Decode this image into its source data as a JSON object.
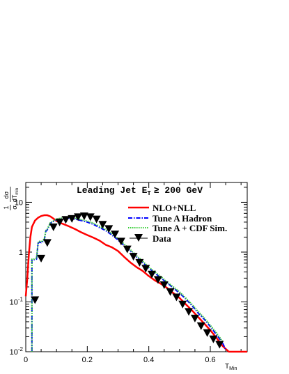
{
  "chart_data": {
    "type": "line",
    "title_main": "Leading Jet E",
    "title_sub": "T",
    "title_rest": "≥ 200 GeV",
    "ylabel": {
      "num": "1",
      "den": "σ",
      "dnum": "dσ",
      "dden": "dT",
      "dden_sub": "min"
    },
    "xlabel": {
      "main": "T",
      "sub": "Min"
    },
    "xlim": [
      0,
      0.72
    ],
    "ylim": [
      0.01,
      25
    ],
    "yscale": "log",
    "x_ticks": [
      {
        "value": 0,
        "label": "0"
      },
      {
        "value": 0.2,
        "label": "0.2"
      },
      {
        "value": 0.4,
        "label": "0.4"
      },
      {
        "value": 0.6,
        "label": "0.6"
      }
    ],
    "y_ticks": [
      {
        "value": 0.01,
        "base": "10",
        "exp": "-2"
      },
      {
        "value": 0.1,
        "base": "10",
        "exp": "-1"
      },
      {
        "value": 1,
        "base": "1",
        "exp": ""
      },
      {
        "value": 10,
        "base": "10",
        "exp": ""
      }
    ],
    "series": [
      {
        "name": "NLO+NLL",
        "color": "#ff0000",
        "style": "solid",
        "x": [
          0.0,
          0.005,
          0.01,
          0.015,
          0.02,
          0.03,
          0.04,
          0.05,
          0.06,
          0.07,
          0.08,
          0.09,
          0.1,
          0.12,
          0.14,
          0.16,
          0.18,
          0.2,
          0.22,
          0.24,
          0.26,
          0.28,
          0.3,
          0.32,
          0.34,
          0.36,
          0.38,
          0.4,
          0.42,
          0.44,
          0.46,
          0.48,
          0.5,
          0.52,
          0.54,
          0.56,
          0.58,
          0.6,
          0.62,
          0.64,
          0.66,
          0.68,
          0.7,
          0.72
        ],
        "y": [
          0.13,
          0.3,
          0.9,
          2.0,
          3.2,
          4.3,
          4.9,
          5.3,
          5.5,
          5.5,
          5.2,
          4.7,
          4.2,
          3.7,
          3.3,
          2.9,
          2.5,
          2.2,
          1.95,
          1.7,
          1.4,
          1.25,
          1.05,
          0.8,
          0.62,
          0.5,
          0.42,
          0.33,
          0.27,
          0.23,
          0.19,
          0.15,
          0.12,
          0.09,
          0.068,
          0.05,
          0.037,
          0.027,
          0.019,
          0.013,
          0.01,
          0.01,
          0.01,
          0.01
        ]
      },
      {
        "name": "Tune A Hadron",
        "color": "#0000ff",
        "style": "dashdot",
        "x": [
          0.02,
          0.02,
          0.025,
          0.035,
          0.04,
          0.045,
          0.05,
          0.06,
          0.065,
          0.07,
          0.08,
          0.1,
          0.12,
          0.14,
          0.16,
          0.18,
          0.2,
          0.22,
          0.24,
          0.26,
          0.28,
          0.3,
          0.32,
          0.34,
          0.36,
          0.38,
          0.4,
          0.42,
          0.44,
          0.46,
          0.48,
          0.5,
          0.52,
          0.54,
          0.56,
          0.58,
          0.6,
          0.62,
          0.64,
          0.65
        ],
        "y": [
          0.01,
          0.7,
          0.7,
          0.72,
          1.5,
          1.6,
          1.55,
          1.7,
          2.6,
          2.8,
          3.8,
          4.5,
          4.7,
          4.8,
          4.6,
          4.3,
          4.0,
          3.6,
          3.1,
          2.7,
          2.2,
          1.75,
          1.35,
          1.05,
          0.8,
          0.62,
          0.48,
          0.38,
          0.3,
          0.24,
          0.19,
          0.15,
          0.115,
          0.085,
          0.06,
          0.045,
          0.032,
          0.022,
          0.015,
          0.011
        ]
      },
      {
        "name": "Tune A + CDF Sim.",
        "color": "#33cc33",
        "style": "dotted",
        "x": [
          0.02,
          0.02,
          0.025,
          0.035,
          0.04,
          0.045,
          0.05,
          0.06,
          0.065,
          0.07,
          0.08,
          0.1,
          0.12,
          0.14,
          0.16,
          0.18,
          0.2,
          0.22,
          0.24,
          0.26,
          0.28,
          0.3,
          0.32,
          0.34,
          0.36,
          0.38,
          0.4,
          0.42,
          0.44,
          0.46,
          0.48,
          0.5,
          0.52,
          0.54,
          0.56,
          0.58,
          0.6,
          0.62,
          0.64
        ],
        "y": [
          0.01,
          0.72,
          0.72,
          0.75,
          1.55,
          1.65,
          1.6,
          1.8,
          2.7,
          2.9,
          3.9,
          4.6,
          4.9,
          5.0,
          4.8,
          4.5,
          4.2,
          3.8,
          3.3,
          2.85,
          2.35,
          1.85,
          1.45,
          1.12,
          0.85,
          0.66,
          0.5,
          0.4,
          0.32,
          0.25,
          0.2,
          0.16,
          0.12,
          0.09,
          0.065,
          0.048,
          0.034,
          0.024,
          0.016
        ]
      },
      {
        "name": "Data",
        "color": "#000000",
        "style": "markers",
        "x": [
          0.03,
          0.05,
          0.07,
          0.09,
          0.11,
          0.13,
          0.15,
          0.17,
          0.19,
          0.21,
          0.23,
          0.25,
          0.27,
          0.29,
          0.31,
          0.33,
          0.35,
          0.37,
          0.39,
          0.41,
          0.43,
          0.45,
          0.47,
          0.49,
          0.51,
          0.53,
          0.55,
          0.57,
          0.59,
          0.61,
          0.63
        ],
        "y": [
          0.11,
          0.75,
          1.55,
          3.2,
          4.0,
          4.5,
          4.7,
          5.1,
          5.3,
          5.1,
          4.6,
          3.6,
          2.95,
          2.3,
          1.65,
          1.15,
          0.82,
          0.62,
          0.47,
          0.36,
          0.28,
          0.22,
          0.16,
          0.125,
          0.09,
          0.064,
          0.047,
          0.033,
          0.024,
          0.018,
          0.014
        ]
      }
    ]
  }
}
